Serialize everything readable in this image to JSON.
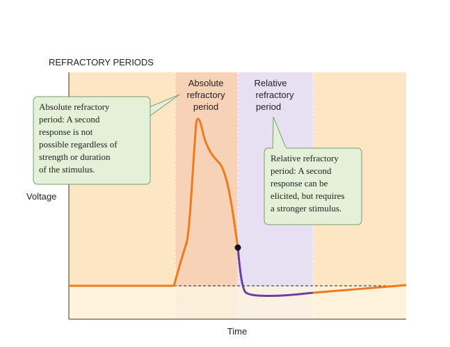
{
  "figure": {
    "title": "REFRACTORY PERIODS",
    "y_axis_label": "Voltage",
    "x_axis_label": "Time",
    "zone_labels": {
      "absolute": [
        "Absolute",
        "refractory",
        "period"
      ],
      "relative": [
        "Relative",
        "refractory",
        "period"
      ]
    },
    "callouts": {
      "absolute": [
        "Absolute refractory",
        "period: A second",
        "response is not",
        "possible regardless of",
        "strength or duration",
        "of the stimulus."
      ],
      "relative": [
        "Relative refractory",
        "period: A second",
        "response can be",
        "elicited, but requires",
        "a stronger stimulus."
      ]
    }
  },
  "colors": {
    "resting_zone": "#fde6c4",
    "absolute_zone": "#f8d2b6",
    "relative_zone": "#e7e0f3",
    "lower_band": "#fef3df",
    "callout_fill": "#e3f1d8",
    "callout_border": "#7a9a6a",
    "trace_orange": "#ef7a1d",
    "trace_purple": "#6b3fa0",
    "axis": "#333333"
  }
}
